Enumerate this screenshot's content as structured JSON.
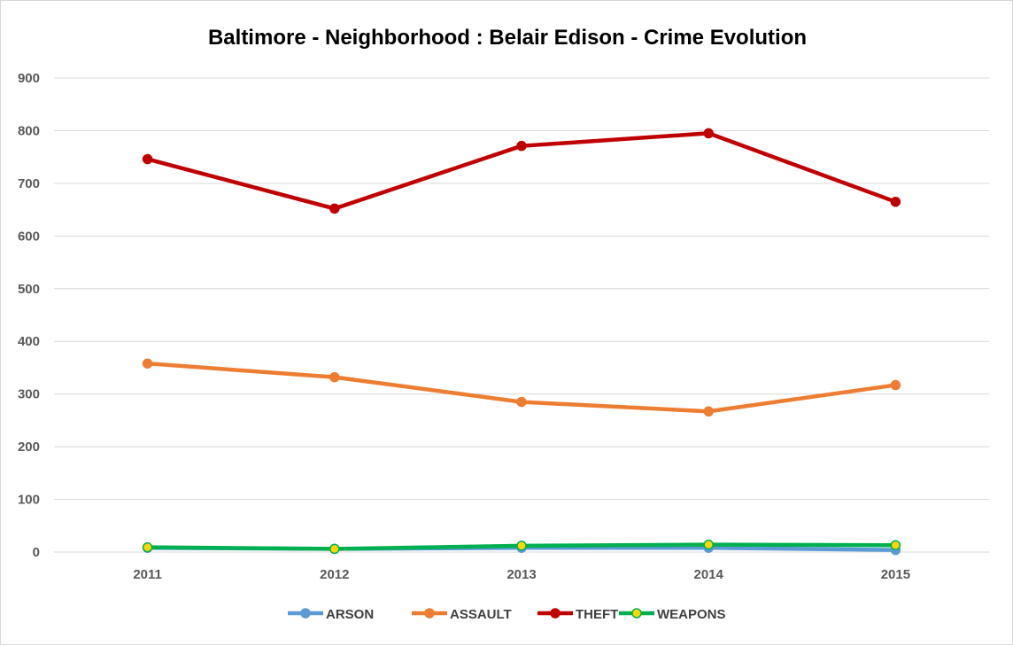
{
  "chart_data": {
    "type": "line",
    "title": "Baltimore - Neighborhood : Belair Edison - Crime Evolution",
    "xlabel": "",
    "ylabel": "",
    "categories": [
      "2011",
      "2012",
      "2013",
      "2014",
      "2015"
    ],
    "ylim": [
      0,
      900
    ],
    "yticks": [
      0,
      100,
      200,
      300,
      400,
      500,
      600,
      700,
      800,
      900
    ],
    "yticklabels": [
      "0",
      "100",
      "200",
      "300",
      "400",
      "500",
      "600",
      "700",
      "800",
      "900"
    ],
    "grid": true,
    "legend": "bottom",
    "series": [
      {
        "name": "ARSON",
        "color": "#5b9bd5",
        "marker_fill": "#5b9bd5",
        "values": [
          8,
          6,
          8,
          8,
          4
        ]
      },
      {
        "name": "ASSAULT",
        "color": "#ed7d31",
        "marker_fill": "#ed7d31",
        "values": [
          358,
          332,
          285,
          267,
          317
        ]
      },
      {
        "name": "THEFT",
        "color": "#c00000",
        "marker_fill": "#c00000",
        "values": [
          746,
          652,
          771,
          795,
          665
        ]
      },
      {
        "name": "WEAPONS",
        "color": "#00b050",
        "marker_fill": "#ffd700",
        "values": [
          9,
          6,
          12,
          14,
          13
        ]
      }
    ]
  }
}
